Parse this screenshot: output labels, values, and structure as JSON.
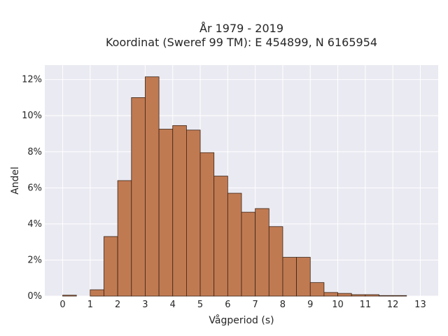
{
  "chart_data": {
    "type": "bar",
    "title_line1": "År 1979 - 2019",
    "title_line2": "Koordinat (Sweref 99 TM): E 454899, N 6165954",
    "xlabel": "Vågperiod (s)",
    "ylabel": "Andel",
    "bin_width": 0.5,
    "bin_starts": [
      0,
      0.5,
      1,
      1.5,
      2,
      2.5,
      3,
      3.5,
      4,
      4.5,
      5,
      5.5,
      6,
      6.5,
      7,
      7.5,
      8,
      8.5,
      9,
      9.5,
      10,
      10.5,
      11,
      11.5,
      12,
      12.5
    ],
    "values": [
      0.05,
      0.0,
      0.35,
      3.3,
      6.4,
      11.0,
      12.15,
      9.25,
      9.45,
      9.2,
      7.95,
      6.65,
      5.7,
      4.65,
      4.85,
      3.85,
      2.15,
      2.15,
      0.75,
      0.2,
      0.15,
      0.08,
      0.08,
      0.03,
      0.03,
      0.0
    ],
    "xlim": [
      -0.65,
      13.65
    ],
    "ylim": [
      0,
      12.8
    ],
    "x_ticks": [
      "0",
      "1",
      "2",
      "3",
      "4",
      "5",
      "6",
      "7",
      "8",
      "9",
      "10",
      "11",
      "12",
      "13"
    ],
    "y_ticks": [
      "0%",
      "2%",
      "4%",
      "6%",
      "8%",
      "10%",
      "12%"
    ],
    "grid": true,
    "bar_color": "#c07a52",
    "bar_edge_color": "#3a2314",
    "plot_background": "#eaeaf2"
  }
}
